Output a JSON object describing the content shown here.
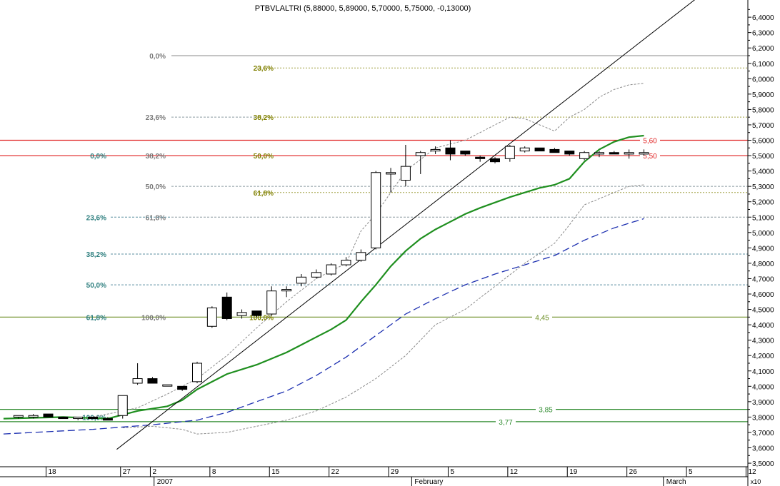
{
  "chart_data": {
    "type": "candlestick",
    "title": "PTBVLALTRI (5,88000, 5,89000, 5,70000, 5,75000, -0,13000)",
    "y_axis": {
      "min": 3.45,
      "max": 6.5,
      "ticks": [
        3.5,
        3.6,
        3.7,
        3.8,
        3.9,
        4.0,
        4.1,
        4.2,
        4.3,
        4.4,
        4.5,
        4.6,
        4.7,
        4.8,
        4.9,
        5.0,
        5.1,
        5.2,
        5.3,
        5.4,
        5.5,
        5.6,
        5.7,
        5.8,
        5.9,
        6.0,
        6.1,
        6.2,
        6.3,
        6.4
      ],
      "tick_labels": [
        "3,5000",
        "3,6000",
        "3,7000",
        "3,8000",
        "3,9000",
        "4,0000",
        "4,1000",
        "4,2000",
        "4,3000",
        "4,4000",
        "4,5000",
        "4,6000",
        "4,7000",
        "4,8000",
        "4,9000",
        "5,0000",
        "5,1000",
        "5,2000",
        "5,3000",
        "5,4000",
        "5,5000",
        "5,6000",
        "5,7000",
        "5,8000",
        "5,9000",
        "6,0000",
        "6,1000",
        "6,2000",
        "6,3000",
        "6,4000"
      ],
      "scale_note": "x10",
      "position": "right"
    },
    "x_axis": {
      "day_ticks": [
        {
          "index": 2,
          "label": "18"
        },
        {
          "index": 7,
          "label": "27"
        },
        {
          "index": 9,
          "label": "2"
        },
        {
          "index": 13,
          "label": "8"
        },
        {
          "index": 17,
          "label": "15"
        },
        {
          "index": 21,
          "label": "22"
        },
        {
          "index": 25,
          "label": "29"
        },
        {
          "index": 29,
          "label": "5"
        },
        {
          "index": 33,
          "label": "12"
        },
        {
          "index": 37,
          "label": "19"
        },
        {
          "index": 41,
          "label": "26"
        },
        {
          "index": 45,
          "label": "5"
        },
        {
          "index": 49,
          "label": "12"
        }
      ],
      "month_labels": [
        {
          "index": 9.3,
          "label": "2007"
        },
        {
          "index": 26.6,
          "label": "February"
        },
        {
          "index": 43.5,
          "label": "March"
        }
      ]
    },
    "candles": [
      {
        "o": 3.8,
        "h": 3.81,
        "l": 3.79,
        "c": 3.81
      },
      {
        "o": 3.8,
        "h": 3.82,
        "l": 3.79,
        "c": 3.81
      },
      {
        "o": 3.82,
        "h": 3.82,
        "l": 3.8,
        "c": 3.8
      },
      {
        "o": 3.8,
        "h": 3.8,
        "l": 3.79,
        "c": 3.79
      },
      {
        "o": 3.79,
        "h": 3.8,
        "l": 3.78,
        "c": 3.8
      },
      {
        "o": 3.8,
        "h": 3.8,
        "l": 3.79,
        "c": 3.79
      },
      {
        "o": 3.79,
        "h": 3.8,
        "l": 3.78,
        "c": 3.78
      },
      {
        "o": 3.81,
        "h": 3.94,
        "l": 3.79,
        "c": 3.94
      },
      {
        "o": 4.02,
        "h": 4.15,
        "l": 4.01,
        "c": 4.05
      },
      {
        "o": 4.05,
        "h": 4.06,
        "l": 4.02,
        "c": 4.02
      },
      {
        "o": 4.01,
        "h": 4.01,
        "l": 4.0,
        "c": 4.01
      },
      {
        "o": 4.0,
        "h": 4.0,
        "l": 3.97,
        "c": 3.98
      },
      {
        "o": 4.03,
        "h": 4.16,
        "l": 4.02,
        "c": 4.15
      },
      {
        "o": 4.39,
        "h": 4.52,
        "l": 4.38,
        "c": 4.51
      },
      {
        "o": 4.58,
        "h": 4.61,
        "l": 4.43,
        "c": 4.44
      },
      {
        "o": 4.46,
        "h": 4.5,
        "l": 4.44,
        "c": 4.48
      },
      {
        "o": 4.49,
        "h": 4.49,
        "l": 4.45,
        "c": 4.46
      },
      {
        "o": 4.47,
        "h": 4.65,
        "l": 4.46,
        "c": 4.62
      },
      {
        "o": 4.62,
        "h": 4.65,
        "l": 4.58,
        "c": 4.63
      },
      {
        "o": 4.67,
        "h": 4.73,
        "l": 4.65,
        "c": 4.71
      },
      {
        "o": 4.71,
        "h": 4.76,
        "l": 4.7,
        "c": 4.74
      },
      {
        "o": 4.73,
        "h": 4.8,
        "l": 4.72,
        "c": 4.79
      },
      {
        "o": 4.79,
        "h": 4.84,
        "l": 4.78,
        "c": 4.82
      },
      {
        "o": 4.82,
        "h": 4.89,
        "l": 4.81,
        "c": 4.87
      },
      {
        "o": 4.9,
        "h": 5.4,
        "l": 4.89,
        "c": 5.39
      },
      {
        "o": 5.38,
        "h": 5.42,
        "l": 5.26,
        "c": 5.39
      },
      {
        "o": 5.34,
        "h": 5.57,
        "l": 5.3,
        "c": 5.43
      },
      {
        "o": 5.5,
        "h": 5.53,
        "l": 5.38,
        "c": 5.52
      },
      {
        "o": 5.53,
        "h": 5.56,
        "l": 5.51,
        "c": 5.54
      },
      {
        "o": 5.55,
        "h": 5.6,
        "l": 5.47,
        "c": 5.51
      },
      {
        "o": 5.53,
        "h": 5.53,
        "l": 5.5,
        "c": 5.51
      },
      {
        "o": 5.49,
        "h": 5.5,
        "l": 5.46,
        "c": 5.48
      },
      {
        "o": 5.48,
        "h": 5.49,
        "l": 5.45,
        "c": 5.46
      },
      {
        "o": 5.48,
        "h": 5.57,
        "l": 5.46,
        "c": 5.56
      },
      {
        "o": 5.53,
        "h": 5.56,
        "l": 5.52,
        "c": 5.55
      },
      {
        "o": 5.55,
        "h": 5.55,
        "l": 5.53,
        "c": 5.53
      },
      {
        "o": 5.54,
        "h": 5.55,
        "l": 5.52,
        "c": 5.52
      },
      {
        "o": 5.53,
        "h": 5.53,
        "l": 5.5,
        "c": 5.51
      },
      {
        "o": 5.48,
        "h": 5.53,
        "l": 5.47,
        "c": 5.52
      },
      {
        "o": 5.51,
        "h": 5.53,
        "l": 5.49,
        "c": 5.52
      },
      {
        "o": 5.52,
        "h": 5.53,
        "l": 5.51,
        "c": 5.51
      },
      {
        "o": 5.51,
        "h": 5.54,
        "l": 5.48,
        "c": 5.52
      },
      {
        "o": 5.51,
        "h": 5.54,
        "l": 5.5,
        "c": 5.52
      }
    ],
    "horizontal_levels": [
      {
        "value": 5.6,
        "label": "5,60",
        "color": "#e02020"
      },
      {
        "value": 5.5,
        "label": "5,50",
        "color": "#e02020"
      },
      {
        "value": 4.45,
        "label": "4,45",
        "color": "#6b8e23"
      },
      {
        "value": 3.85,
        "label": "3,85",
        "color": "#2e8b2e"
      },
      {
        "value": 3.77,
        "label": "3,77",
        "color": "#2e8b2e"
      }
    ],
    "fib_olive": [
      {
        "value": 6.07,
        "label": "23,6%"
      },
      {
        "value": 5.75,
        "label": "38,2%"
      },
      {
        "value": 5.5,
        "label": "50,0%"
      },
      {
        "value": 5.26,
        "label": "61,8%"
      },
      {
        "value": 4.45,
        "label": "100,0%"
      }
    ],
    "fib_gray": [
      {
        "value": 6.15,
        "label": "0,0%"
      },
      {
        "value": 5.75,
        "label": "23,6%"
      },
      {
        "value": 5.5,
        "label": "38,2%"
      },
      {
        "value": 5.3,
        "label": "50,0%"
      },
      {
        "value": 5.1,
        "label": "61,8%"
      },
      {
        "value": 4.45,
        "label": "100,0%"
      }
    ],
    "fib_teal": [
      {
        "value": 5.5,
        "label": "0,0%"
      },
      {
        "value": 5.1,
        "label": "23,6%"
      },
      {
        "value": 4.86,
        "label": "38,2%"
      },
      {
        "value": 4.66,
        "label": "50,0%"
      },
      {
        "value": 4.45,
        "label": "61,8%"
      },
      {
        "value": 3.8,
        "label": "100,0%"
      }
    ],
    "ma_green": [
      [
        -1,
        3.79
      ],
      [
        3,
        3.8
      ],
      [
        6,
        3.79
      ],
      [
        8,
        3.84
      ],
      [
        10,
        3.87
      ],
      [
        11,
        3.91
      ],
      [
        12,
        3.98
      ],
      [
        14,
        4.08
      ],
      [
        16,
        4.14
      ],
      [
        18,
        4.22
      ],
      [
        19,
        4.27
      ],
      [
        20,
        4.32
      ],
      [
        21,
        4.37
      ],
      [
        22,
        4.43
      ],
      [
        23,
        4.55
      ],
      [
        24,
        4.66
      ],
      [
        25,
        4.78
      ],
      [
        26,
        4.88
      ],
      [
        27,
        4.96
      ],
      [
        28,
        5.02
      ],
      [
        29,
        5.07
      ],
      [
        30,
        5.12
      ],
      [
        31,
        5.16
      ],
      [
        33,
        5.23
      ],
      [
        35,
        5.29
      ],
      [
        36,
        5.31
      ],
      [
        37,
        5.35
      ],
      [
        38,
        5.46
      ],
      [
        39,
        5.54
      ],
      [
        40,
        5.59
      ],
      [
        41,
        5.62
      ],
      [
        42,
        5.63
      ]
    ],
    "ma_blue": [
      [
        -1,
        3.69
      ],
      [
        5,
        3.72
      ],
      [
        9,
        3.75
      ],
      [
        12,
        3.78
      ],
      [
        14,
        3.83
      ],
      [
        16,
        3.9
      ],
      [
        18,
        3.97
      ],
      [
        20,
        4.07
      ],
      [
        22,
        4.19
      ],
      [
        24,
        4.33
      ],
      [
        26,
        4.47
      ],
      [
        28,
        4.57
      ],
      [
        30,
        4.66
      ],
      [
        32,
        4.73
      ],
      [
        34,
        4.79
      ],
      [
        36,
        4.85
      ],
      [
        38,
        4.95
      ],
      [
        40,
        5.03
      ],
      [
        42,
        5.09
      ]
    ],
    "band_upper": [
      [
        5,
        3.8
      ],
      [
        8,
        3.86
      ],
      [
        10,
        3.95
      ],
      [
        12,
        4.05
      ],
      [
        14,
        4.2
      ],
      [
        16,
        4.38
      ],
      [
        18,
        4.55
      ],
      [
        20,
        4.7
      ],
      [
        22,
        4.8
      ],
      [
        23,
        5.01
      ],
      [
        24,
        5.12
      ],
      [
        26,
        5.4
      ],
      [
        28,
        5.55
      ],
      [
        30,
        5.6
      ],
      [
        32,
        5.7
      ],
      [
        33,
        5.75
      ],
      [
        34,
        5.74
      ],
      [
        36,
        5.66
      ],
      [
        37,
        5.75
      ],
      [
        38,
        5.8
      ],
      [
        39,
        5.88
      ],
      [
        40,
        5.93
      ],
      [
        41,
        5.96
      ],
      [
        42,
        5.97
      ]
    ],
    "band_lower": [
      [
        7,
        3.73
      ],
      [
        9,
        3.74
      ],
      [
        11,
        3.72
      ],
      [
        12,
        3.69
      ],
      [
        14,
        3.7
      ],
      [
        16,
        3.74
      ],
      [
        18,
        3.78
      ],
      [
        20,
        3.84
      ],
      [
        22,
        3.93
      ],
      [
        24,
        4.05
      ],
      [
        26,
        4.2
      ],
      [
        27,
        4.3
      ],
      [
        28,
        4.4
      ],
      [
        30,
        4.5
      ],
      [
        32,
        4.65
      ],
      [
        34,
        4.8
      ],
      [
        36,
        4.93
      ],
      [
        37,
        5.05
      ],
      [
        38,
        5.18
      ],
      [
        39,
        5.22
      ],
      [
        40,
        5.26
      ],
      [
        41,
        5.3
      ],
      [
        42,
        5.31
      ]
    ],
    "trendline": [
      [
        6.6,
        3.59
      ],
      [
        45.5,
        6.52
      ]
    ]
  }
}
